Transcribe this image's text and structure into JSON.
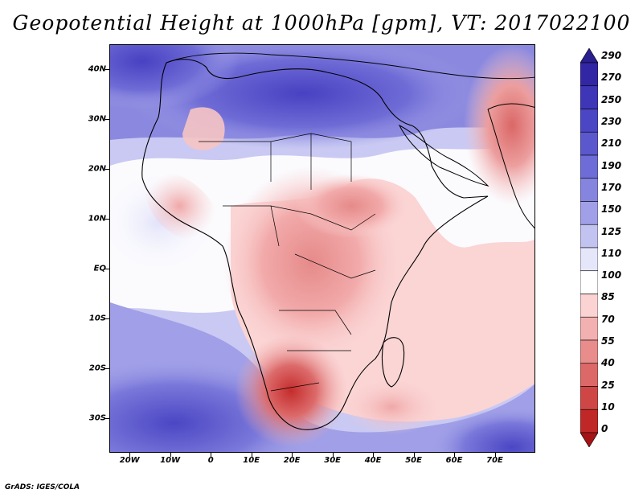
{
  "title": "Geopotential Height at 1000hPa [gpm], VT: 2017022100",
  "credit": "GrADS: IGES/COLA",
  "map": {
    "lon_range": [
      -25,
      80
    ],
    "lat_range": [
      -37,
      45
    ],
    "lat_ticks": [
      {
        "value": 40,
        "label": "40N"
      },
      {
        "value": 30,
        "label": "30N"
      },
      {
        "value": 20,
        "label": "20N"
      },
      {
        "value": 10,
        "label": "10N"
      },
      {
        "value": 0,
        "label": "EQ"
      },
      {
        "value": -10,
        "label": "10S"
      },
      {
        "value": -20,
        "label": "20S"
      },
      {
        "value": -30,
        "label": "30S"
      }
    ],
    "lon_ticks": [
      {
        "value": -20,
        "label": "20W"
      },
      {
        "value": -10,
        "label": "10W"
      },
      {
        "value": 0,
        "label": "0"
      },
      {
        "value": 10,
        "label": "10E"
      },
      {
        "value": 20,
        "label": "20E"
      },
      {
        "value": 30,
        "label": "30E"
      },
      {
        "value": 40,
        "label": "40E"
      },
      {
        "value": 50,
        "label": "50E"
      },
      {
        "value": 60,
        "label": "60E"
      },
      {
        "value": 70,
        "label": "70E"
      }
    ]
  },
  "colorbar": {
    "levels": [
      "290",
      "270",
      "250",
      "230",
      "210",
      "190",
      "170",
      "150",
      "125",
      "110",
      "100",
      "85",
      "70",
      "55",
      "40",
      "25",
      "10",
      "0"
    ],
    "colors": [
      "#2a1f8f",
      "#3326a5",
      "#3e36b7",
      "#4b46c4",
      "#5b58cd",
      "#6e6cd6",
      "#8584de",
      "#a09fe7",
      "#c3c3f1",
      "#e6e6fb",
      "#ffffff",
      "#fbd3d3",
      "#f3b0b0",
      "#e88c8c",
      "#dc6868",
      "#cf4646",
      "#c02828",
      "#a51414"
    ]
  }
}
